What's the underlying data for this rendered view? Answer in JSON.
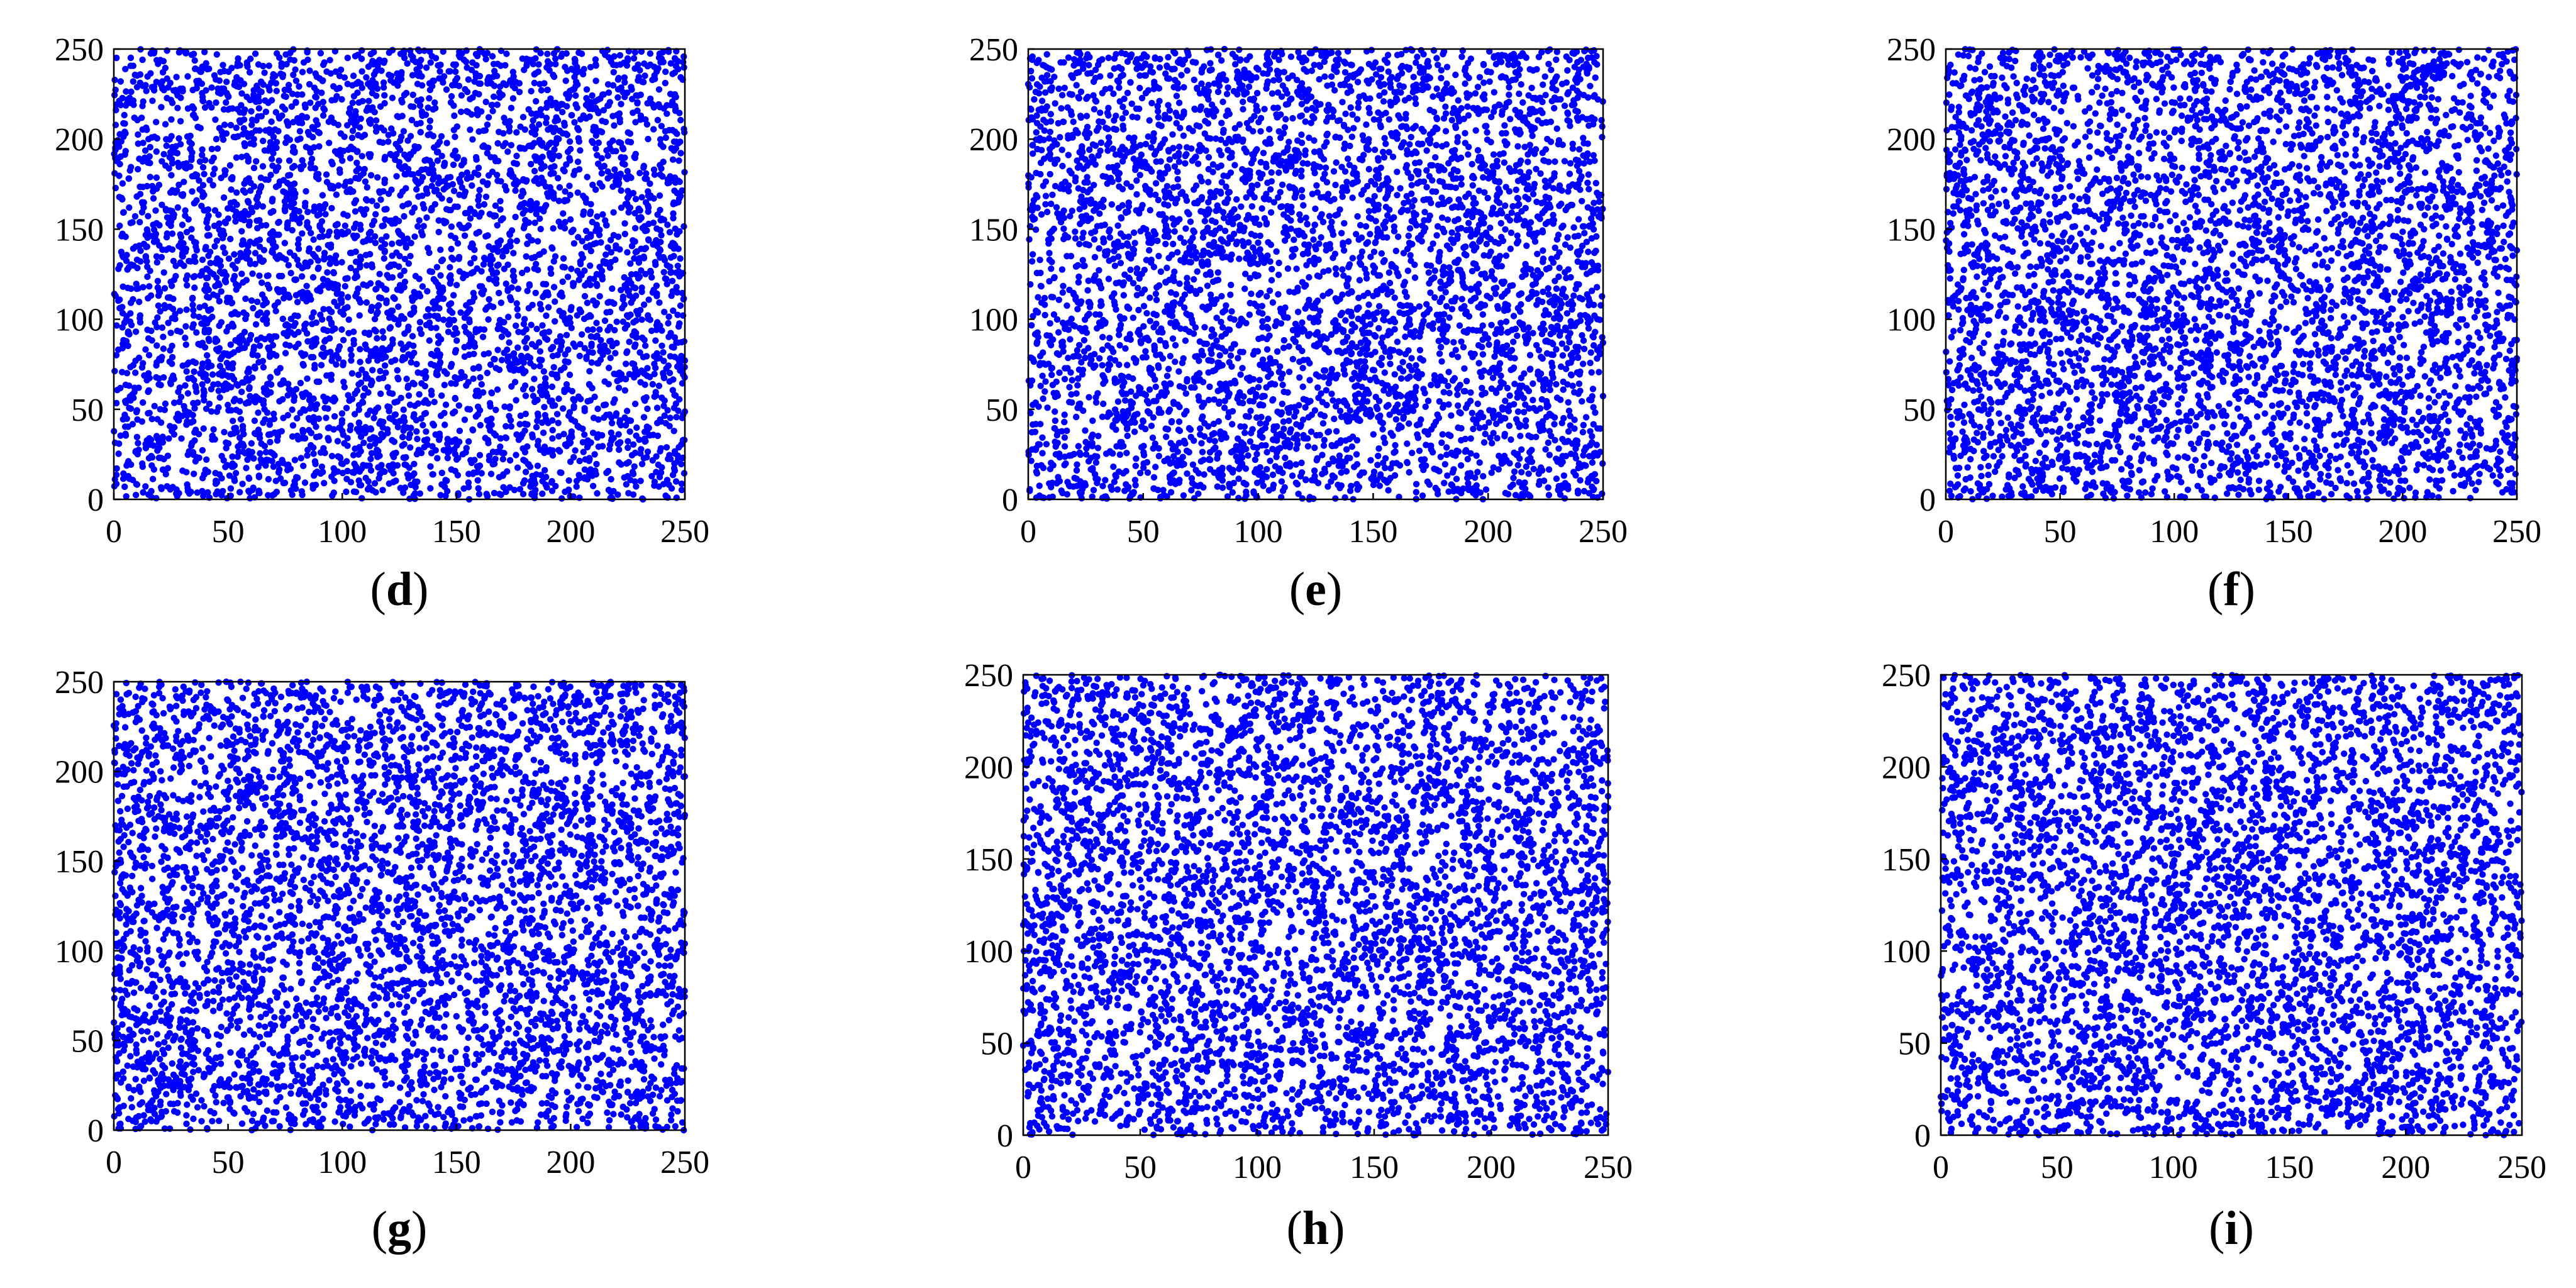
{
  "figure": {
    "point_color": "#0000ff"
  },
  "chart_data": [
    {
      "type": "scatter",
      "panel_label": "d",
      "caption_open": "(",
      "caption_close": ")",
      "xlim": [
        0,
        250
      ],
      "ylim": [
        0,
        250
      ],
      "xticks": [
        0,
        50,
        100,
        150,
        200,
        250
      ],
      "yticks": [
        0,
        50,
        100,
        150,
        200,
        250
      ],
      "xtick_labels": [
        "0",
        "50",
        "100",
        "150",
        "200",
        "250"
      ],
      "ytick_labels": [
        "0",
        "50",
        "100",
        "150",
        "200",
        "250"
      ],
      "grid": false,
      "series": [
        {
          "color": "#0000ff",
          "distribution": "uniform",
          "point_count": 4800,
          "seed": 4
        }
      ]
    },
    {
      "type": "scatter",
      "panel_label": "e",
      "caption_open": "(",
      "caption_close": ")",
      "xlim": [
        0,
        250
      ],
      "ylim": [
        0,
        250
      ],
      "xticks": [
        0,
        50,
        100,
        150,
        200,
        250
      ],
      "yticks": [
        0,
        50,
        100,
        150,
        200,
        250
      ],
      "xtick_labels": [
        "0",
        "50",
        "100",
        "150",
        "200",
        "250"
      ],
      "ytick_labels": [
        "0",
        "50",
        "100",
        "150",
        "200",
        "250"
      ],
      "grid": false,
      "series": [
        {
          "color": "#0000ff",
          "distribution": "uniform",
          "point_count": 4800,
          "seed": 5
        }
      ]
    },
    {
      "type": "scatter",
      "panel_label": "f",
      "caption_open": "(",
      "caption_close": ")",
      "xlim": [
        0,
        250
      ],
      "ylim": [
        0,
        250
      ],
      "xticks": [
        0,
        50,
        100,
        150,
        200,
        250
      ],
      "yticks": [
        0,
        50,
        100,
        150,
        200,
        250
      ],
      "xtick_labels": [
        "0",
        "50",
        "100",
        "150",
        "200",
        "250"
      ],
      "ytick_labels": [
        "0",
        "50",
        "100",
        "150",
        "200",
        "250"
      ],
      "grid": false,
      "series": [
        {
          "color": "#0000ff",
          "distribution": "uniform",
          "point_count": 4800,
          "seed": 6
        }
      ]
    },
    {
      "type": "scatter",
      "panel_label": "g",
      "caption_open": "(",
      "caption_close": ")",
      "xlim": [
        0,
        250
      ],
      "ylim": [
        0,
        250
      ],
      "xticks": [
        0,
        50,
        100,
        150,
        200,
        250
      ],
      "yticks": [
        0,
        50,
        100,
        150,
        200,
        250
      ],
      "xtick_labels": [
        "0",
        "50",
        "100",
        "150",
        "200",
        "250"
      ],
      "ytick_labels": [
        "0",
        "50",
        "100",
        "150",
        "200",
        "250"
      ],
      "grid": false,
      "series": [
        {
          "color": "#0000ff",
          "distribution": "uniform",
          "point_count": 4800,
          "seed": 7
        }
      ]
    },
    {
      "type": "scatter",
      "panel_label": "h",
      "caption_open": "(",
      "caption_close": ")",
      "xlim": [
        0,
        250
      ],
      "ylim": [
        0,
        250
      ],
      "xticks": [
        0,
        50,
        100,
        150,
        200,
        250
      ],
      "yticks": [
        0,
        50,
        100,
        150,
        200,
        250
      ],
      "xtick_labels": [
        "0",
        "50",
        "100",
        "150",
        "200",
        "250"
      ],
      "ytick_labels": [
        "0",
        "50",
        "100",
        "150",
        "200",
        "250"
      ],
      "grid": false,
      "series": [
        {
          "color": "#0000ff",
          "distribution": "uniform",
          "point_count": 4800,
          "seed": 8
        }
      ]
    },
    {
      "type": "scatter",
      "panel_label": "i",
      "caption_open": "(",
      "caption_close": ")",
      "xlim": [
        0,
        250
      ],
      "ylim": [
        0,
        250
      ],
      "xticks": [
        0,
        50,
        100,
        150,
        200,
        250
      ],
      "yticks": [
        0,
        50,
        100,
        150,
        200,
        250
      ],
      "xtick_labels": [
        "0",
        "50",
        "100",
        "150",
        "200",
        "250"
      ],
      "ytick_labels": [
        "0",
        "50",
        "100",
        "150",
        "200",
        "250"
      ],
      "grid": false,
      "series": [
        {
          "color": "#0000ff",
          "distribution": "uniform",
          "point_count": 4800,
          "seed": 9
        }
      ]
    }
  ]
}
